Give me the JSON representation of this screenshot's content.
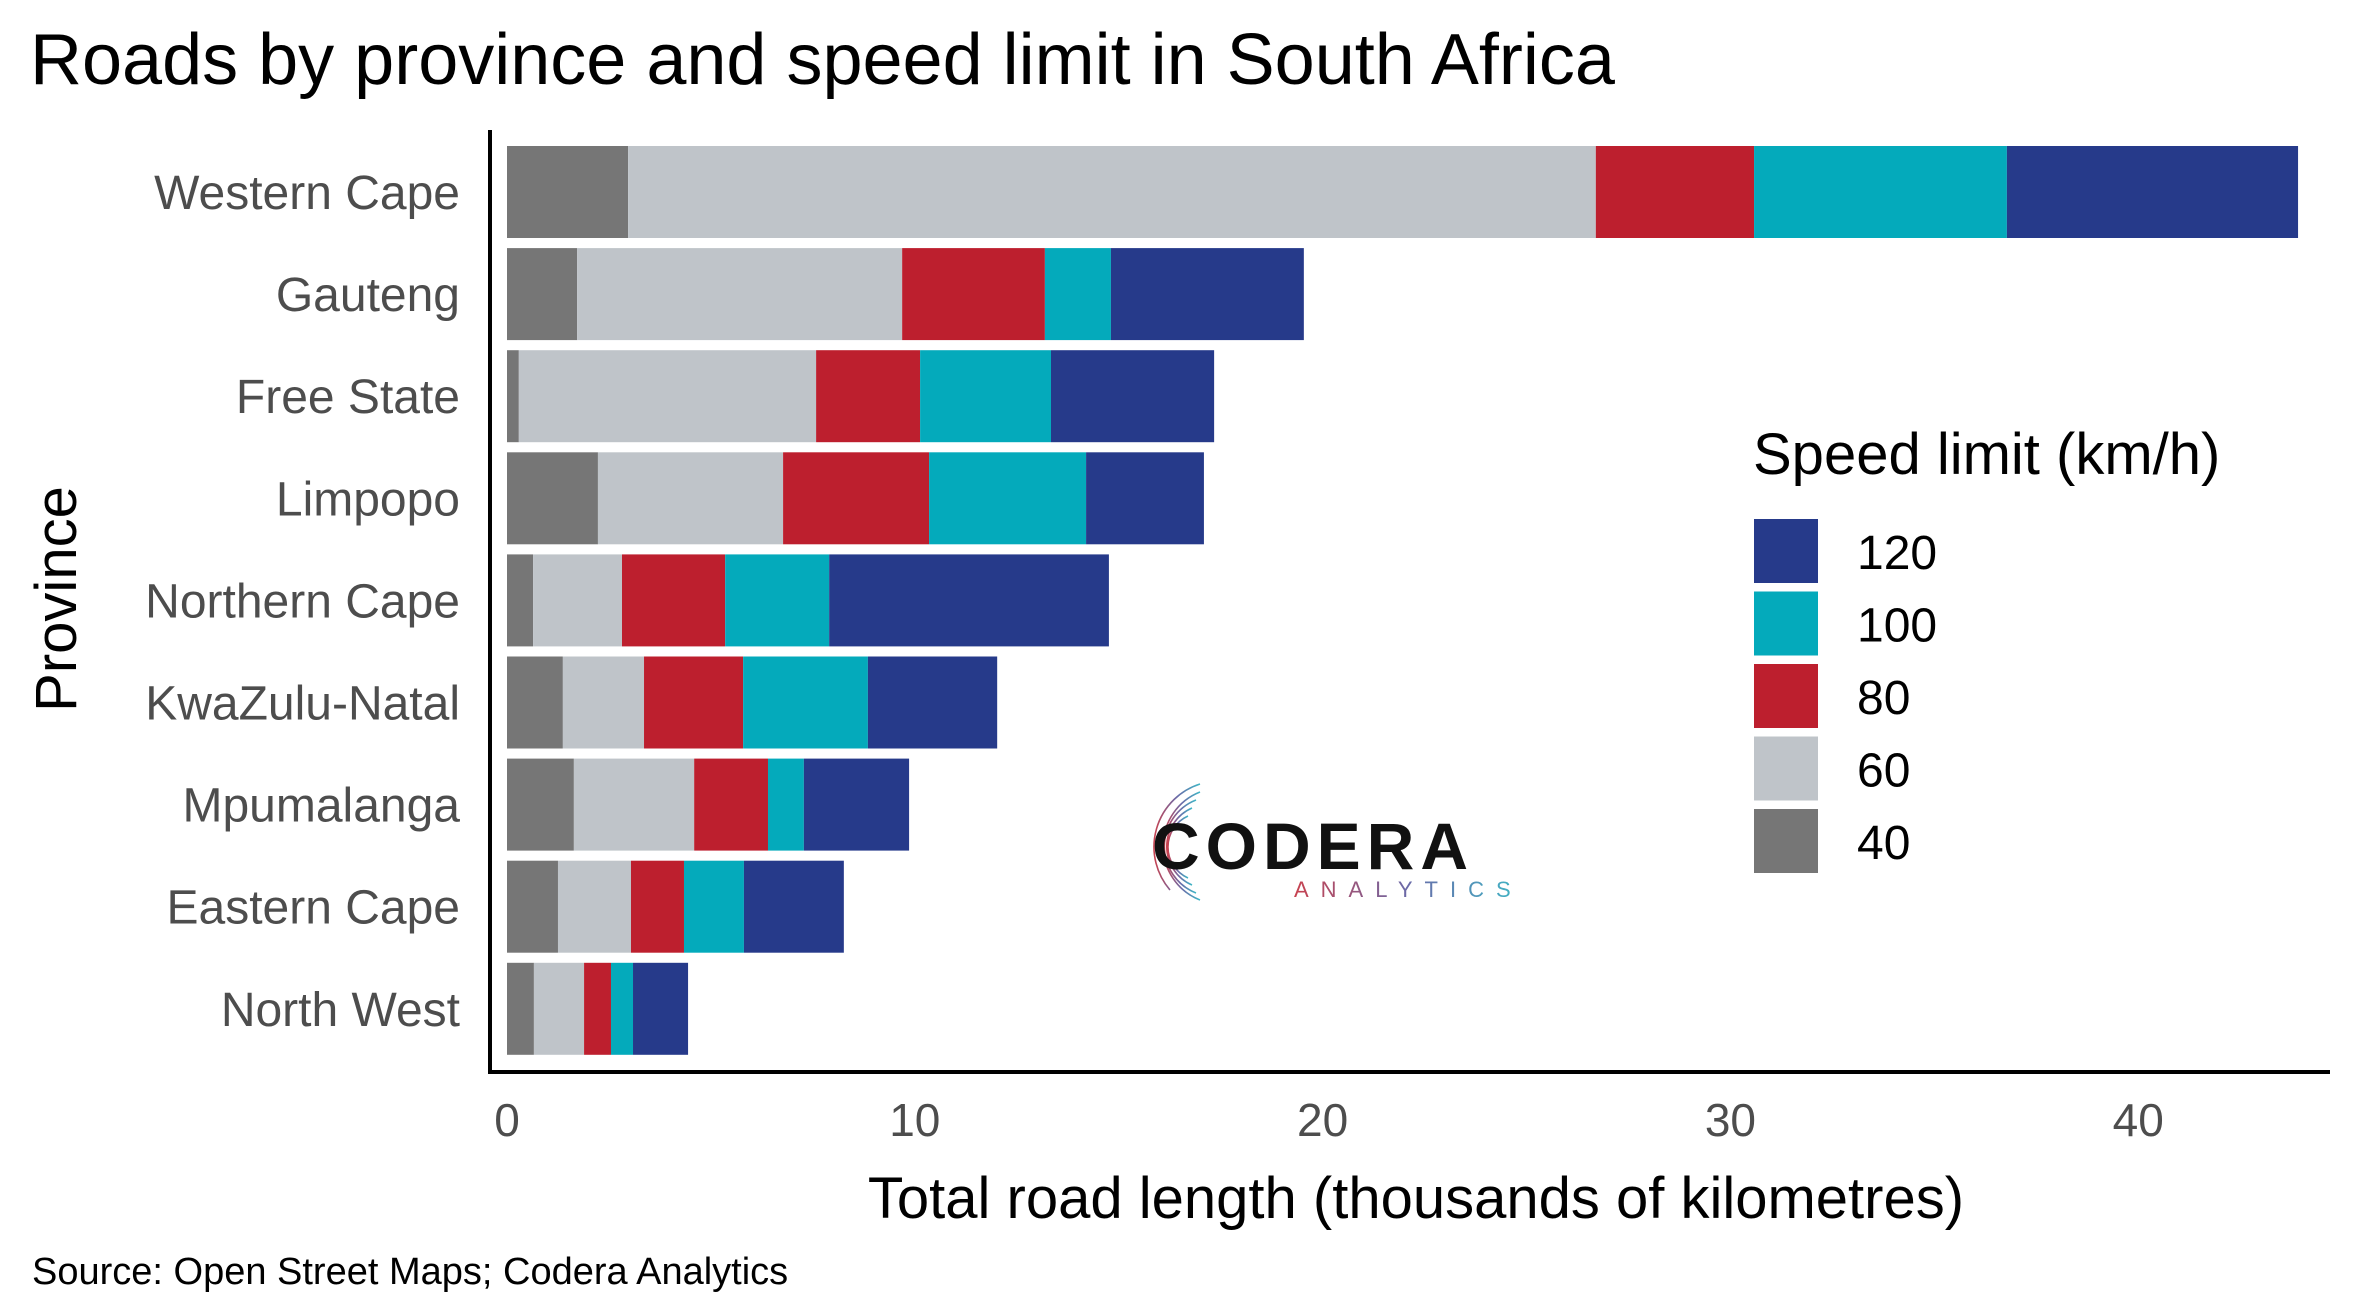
{
  "chart_data": {
    "type": "bar",
    "orientation": "horizontal",
    "stacked": true,
    "title": "Roads by province and speed limit in South Africa",
    "xlabel": "Total road length (thousands of kilometres)",
    "ylabel": "Province",
    "caption": "Source: Open Street Maps; Codera Analytics",
    "xlim": [
      0,
      44
    ],
    "xticks": [
      0,
      10,
      20,
      30,
      40
    ],
    "grid": false,
    "categories": [
      "Western Cape",
      "Gauteng",
      "Free State",
      "Limpopo",
      "Northern Cape",
      "KwaZulu-Natal",
      "Mpumalanga",
      "Eastern Cape",
      "North West"
    ],
    "legend": {
      "title": "Speed limit (km/h)",
      "placement": "right",
      "entries": [
        "120",
        "100",
        "80",
        "60",
        "40"
      ]
    },
    "series": [
      {
        "name": "40",
        "color": "#767676",
        "values": [
          2.97,
          1.72,
          0.29,
          2.23,
          0.64,
          1.37,
          1.64,
          1.25,
          0.66
        ]
      },
      {
        "name": "60",
        "color": "#bfc4c9",
        "values": [
          23.73,
          7.97,
          7.29,
          4.54,
          2.18,
          1.99,
          2.95,
          1.79,
          1.23
        ]
      },
      {
        "name": "80",
        "color": "#bd1f2e",
        "values": [
          3.88,
          3.5,
          2.55,
          3.58,
          2.53,
          2.43,
          1.81,
          1.3,
          0.66
        ]
      },
      {
        "name": "100",
        "color": "#04aabb",
        "values": [
          6.2,
          1.62,
          3.21,
          3.85,
          2.55,
          3.06,
          0.88,
          1.47,
          0.54
        ]
      },
      {
        "name": "120",
        "color": "#263a8a",
        "values": [
          7.14,
          4.73,
          4.0,
          2.89,
          6.86,
          3.17,
          2.58,
          2.45,
          1.35
        ]
      }
    ]
  },
  "logo": {
    "name": "CODERA",
    "subtitle": "ANALYTICS"
  }
}
